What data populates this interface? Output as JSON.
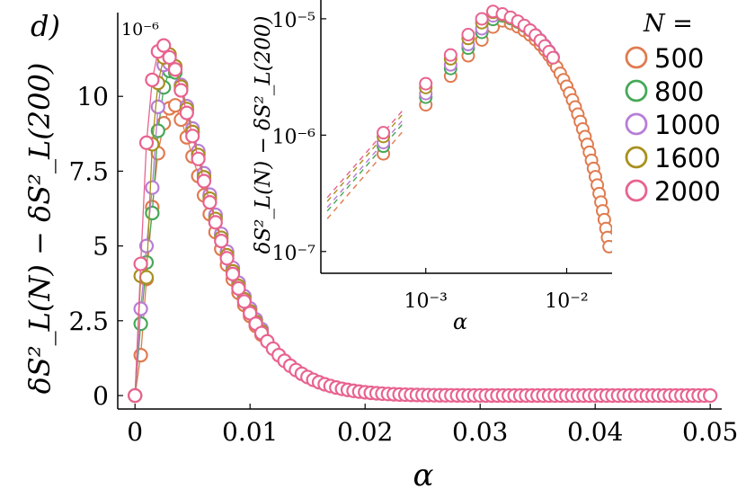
{
  "panel_label": "d)",
  "chart_data": [
    {
      "type": "scatter",
      "id": "main",
      "title": "",
      "xlabel": "α",
      "ylabel": "δS²_L(N) − δS²_L(200)",
      "y_scale_label": "10⁻⁶",
      "xlim": [
        -0.0015,
        0.051
      ],
      "ylim": [
        -0.45,
        12.8
      ],
      "x_ticks": [
        0,
        0.01,
        0.02,
        0.03,
        0.04,
        0.05
      ],
      "x_tick_labels": [
        "0",
        "0.01",
        "0.02",
        "0.03",
        "0.04",
        "0.05"
      ],
      "y_ticks": [
        0,
        2.5,
        5,
        7.5,
        10
      ],
      "y_tick_labels": [
        "0",
        "2.5",
        "5",
        "7.5",
        "10"
      ],
      "series": [
        {
          "name": "500",
          "color": "#e07b4f",
          "peak": 9.7,
          "peak_x": 0.0033,
          "w_low": 0.00165,
          "lo": [
            0,
            1.35,
            3.9,
            6.3,
            8.1,
            9.1,
            9.6,
            9.7
          ]
        },
        {
          "name": "800",
          "color": "#46a857",
          "peak": 10.8,
          "peak_x": 0.0032,
          "w_low": 0.0015,
          "lo": [
            0,
            2.4,
            4.45,
            6.1,
            8.85,
            10.3,
            10.85,
            10.8
          ]
        },
        {
          "name": "1000",
          "color": "#b77ed6",
          "peak": 11.1,
          "peak_x": 0.0031,
          "w_low": 0.00145,
          "lo": [
            0,
            2.9,
            5.0,
            6.95,
            9.65,
            11.05,
            11.1,
            11.0
          ]
        },
        {
          "name": "1600",
          "color": "#a8901f",
          "peak": 11.4,
          "peak_x": 0.0029,
          "w_low": 0.0014,
          "lo": [
            0,
            4.0,
            3.95,
            8.4,
            10.45,
            11.3,
            11.4,
            11.0
          ]
        },
        {
          "name": "2000",
          "color": "#e8638f",
          "peak": 11.7,
          "peak_x": 0.0028,
          "w_low": 0.00135,
          "lo": [
            0,
            4.4,
            8.45,
            10.55,
            11.5,
            11.7,
            11.3,
            10.9
          ]
        }
      ],
      "x_step": 0.0005,
      "x_max": 0.05,
      "tail_decay": 0.0041
    },
    {
      "type": "scatter",
      "id": "inset",
      "xlabel": "α",
      "ylabel": "δS²_L(N) − δS²_L(200)",
      "x_scale": "log",
      "y_scale": "log",
      "xlim": [
        0.00018,
        0.021
      ],
      "ylim": [
        6.5e-08,
        1.45e-05
      ],
      "x_ticks": [
        0.001,
        0.01
      ],
      "x_tick_labels": [
        "10⁻³",
        "10⁻²"
      ],
      "y_ticks": [
        1e-07,
        1e-06,
        1e-05
      ],
      "y_tick_labels": [
        "10⁻⁷",
        "10⁻⁶",
        "10⁻⁵"
      ],
      "inset_x_min": 0.0005
    }
  ],
  "legend": {
    "title": "N =",
    "entries": [
      "500",
      "800",
      "1000",
      "1600",
      "2000"
    ]
  }
}
